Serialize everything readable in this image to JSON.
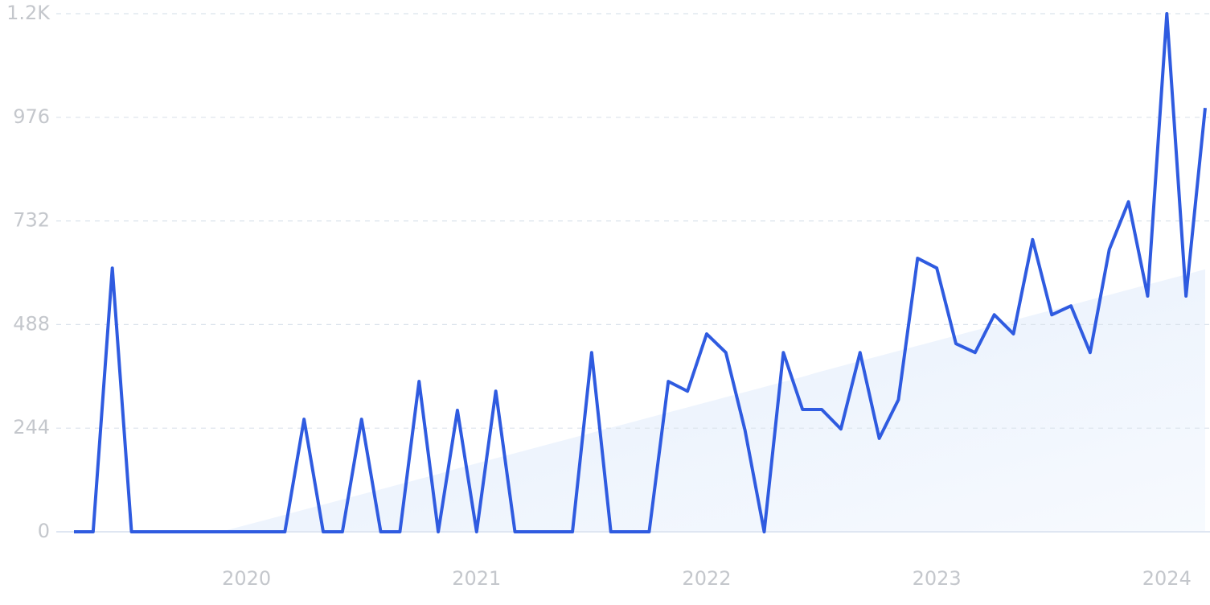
{
  "chart_data": {
    "type": "line",
    "categories": [
      null,
      null,
      null,
      null,
      null,
      null,
      null,
      null,
      null,
      "2020",
      null,
      null,
      null,
      null,
      null,
      null,
      null,
      null,
      null,
      null,
      null,
      "2021",
      null,
      null,
      null,
      null,
      null,
      null,
      null,
      null,
      null,
      null,
      null,
      "2022",
      null,
      null,
      null,
      null,
      null,
      null,
      null,
      null,
      null,
      null,
      null,
      "2023",
      null,
      null,
      null,
      null,
      null,
      null,
      null,
      null,
      null,
      null,
      null,
      "2024",
      null,
      null
    ],
    "values": [
      0,
      0,
      621,
      0,
      0,
      0,
      0,
      0,
      0,
      0,
      0,
      0,
      265,
      0,
      0,
      265,
      0,
      0,
      354,
      0,
      286,
      0,
      331,
      0,
      0,
      0,
      0,
      422,
      0,
      0,
      0,
      354,
      331,
      466,
      422,
      239,
      0,
      422,
      288,
      288,
      242,
      422,
      220,
      311,
      644,
      621,
      443,
      422,
      511,
      466,
      688,
      511,
      532,
      422,
      665,
      777,
      555,
      1220,
      555,
      998
    ],
    "color": "#2f5be0",
    "trend": {
      "color": "#dce9fb",
      "values": [
        null,
        null,
        null,
        null,
        null,
        null,
        null,
        null,
        4,
        16,
        28,
        40,
        52,
        64,
        76,
        88,
        100,
        112,
        124,
        136,
        149,
        161,
        173,
        185,
        197,
        209,
        221,
        233,
        245,
        257,
        269,
        281,
        293,
        305,
        317,
        329,
        341,
        353,
        365,
        378,
        390,
        402,
        414,
        426,
        438,
        450,
        462,
        474,
        486,
        498,
        510,
        522,
        534,
        546,
        558,
        570,
        582,
        594,
        606,
        618
      ]
    },
    "ylim": [
      0,
      1220
    ],
    "yticks": [
      0,
      244,
      488,
      732,
      976,
      {
        "value": 1220,
        "label": "1.2K"
      }
    ],
    "grid": true
  }
}
